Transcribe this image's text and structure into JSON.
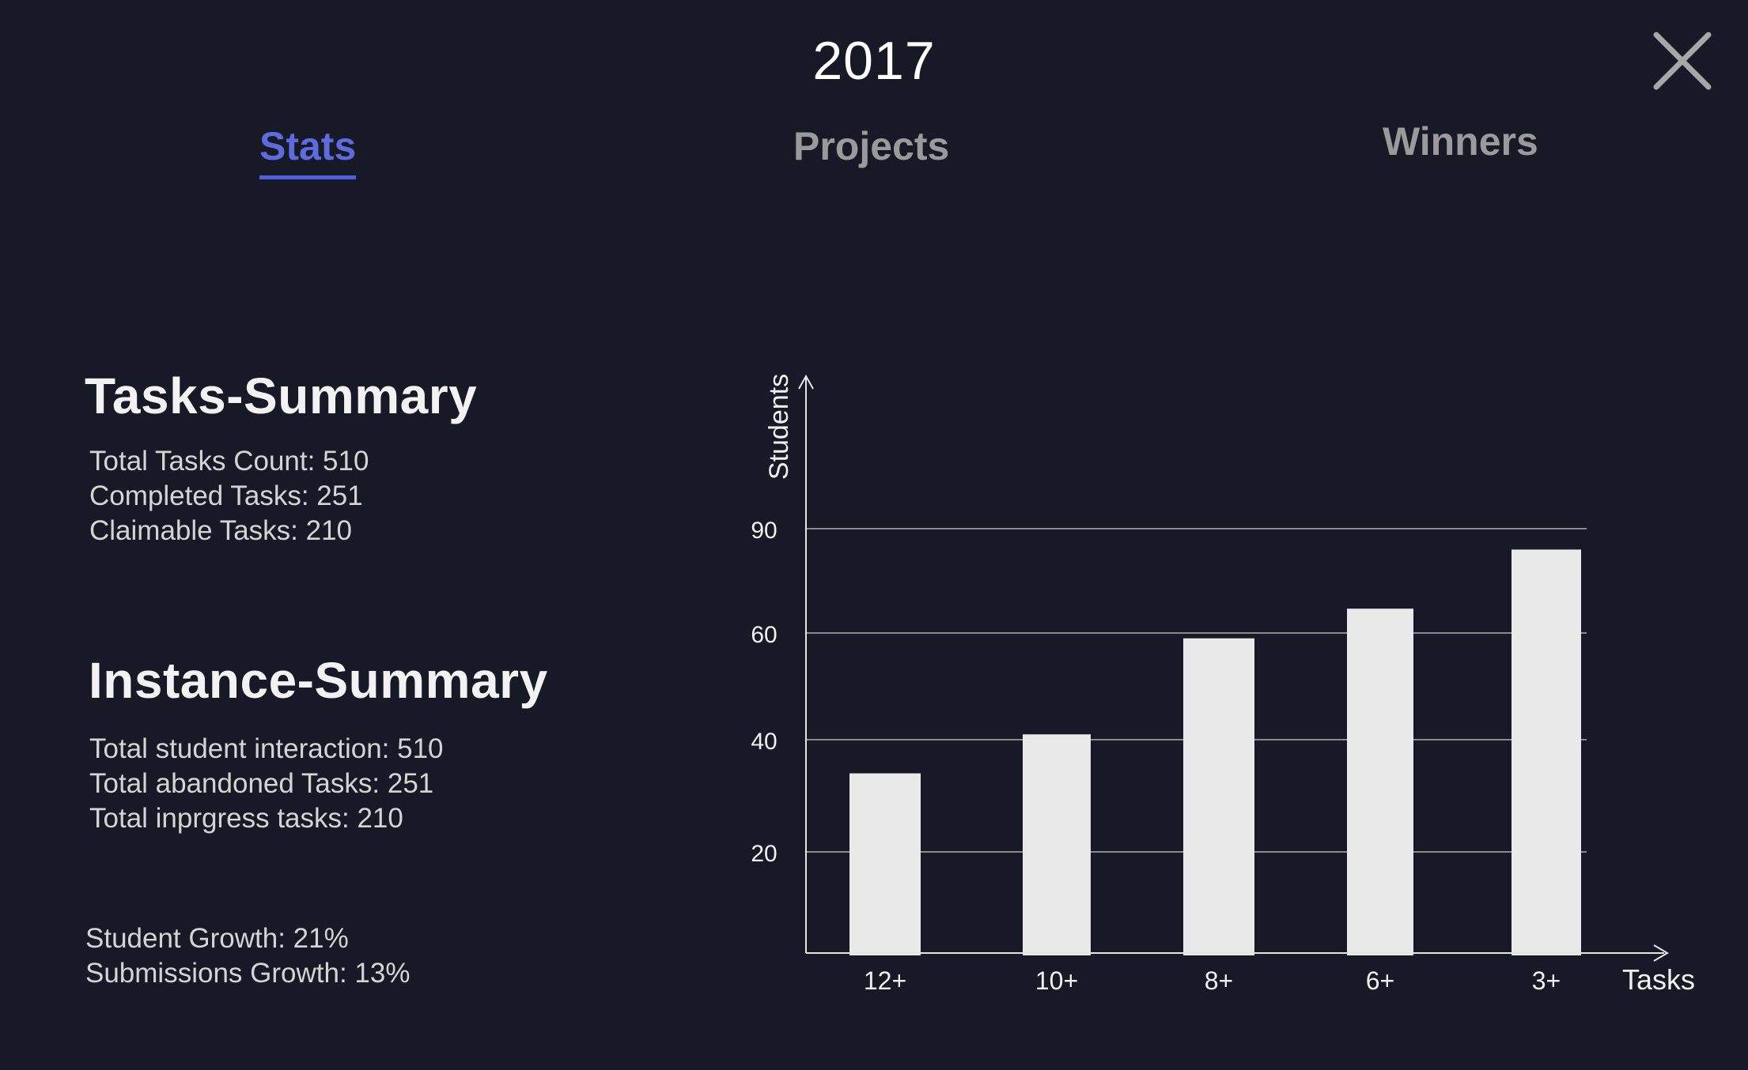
{
  "header": {
    "year": "2017",
    "close_icon": "close-icon"
  },
  "tabs": [
    {
      "label": "Stats",
      "active": true
    },
    {
      "label": "Projects",
      "active": false
    },
    {
      "label": "Winners",
      "active": false
    }
  ],
  "tasks_summary": {
    "heading": "Tasks-Summary",
    "lines": [
      "Total Tasks Count: 510",
      "Completed Tasks: 251",
      "Claimable Tasks: 210"
    ]
  },
  "instance_summary": {
    "heading": "Instance-Summary",
    "lines": [
      "Total student interaction: 510",
      "Total abandoned Tasks: 251",
      "Total inprgress tasks: 210"
    ]
  },
  "growth": {
    "lines": [
      "Student Growth: 21%",
      "Submissions Growth: 13%"
    ]
  },
  "colors": {
    "background": "#171a26",
    "accent": "#4e5fe0",
    "bar": "#e9e9e9",
    "gridline": "#8a8a8a"
  },
  "chart_data": {
    "type": "bar",
    "categories": [
      "12+",
      "10+",
      "8+",
      "6+",
      "3+"
    ],
    "values": [
      34,
      41,
      59,
      67,
      84
    ],
    "ylabel": "Students",
    "xlabel": "Tasks",
    "yticks": [
      20,
      40,
      60,
      90
    ],
    "grid": true
  }
}
